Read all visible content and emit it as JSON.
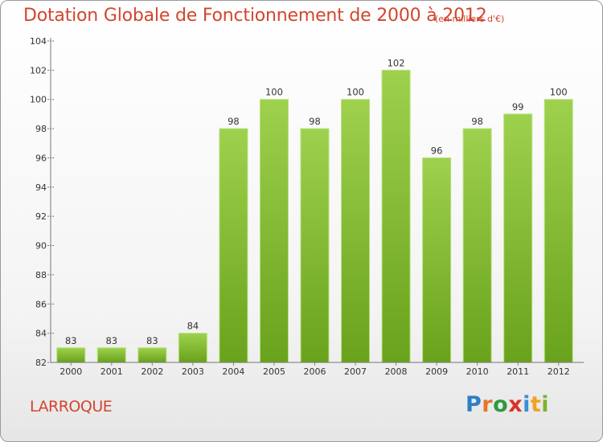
{
  "title": "Dotation Globale de Fonctionnement de 2000 à 2012",
  "unit_note": "(en milliers d'€)",
  "commune": "LARROQUE",
  "brand": {
    "letters": [
      "P",
      "r",
      "o",
      "x",
      "i",
      "t",
      "i"
    ],
    "colors": [
      "#2d7ec4",
      "#e8742a",
      "#2d9a3f",
      "#d8352b",
      "#3b8fd4",
      "#f0a320",
      "#7bb42c"
    ]
  },
  "colors": {
    "title": "#d2462e",
    "bar_light": "#9ed14d",
    "bar_dark": "#69a21c",
    "axis": "#666666"
  },
  "chart_data": {
    "type": "bar",
    "title": "Dotation Globale de Fonctionnement de 2000 à 2012",
    "subtitle": "(en milliers d'€)",
    "categories": [
      "2000",
      "2001",
      "2002",
      "2003",
      "2004",
      "2005",
      "2006",
      "2007",
      "2008",
      "2009",
      "2010",
      "2011",
      "2012"
    ],
    "values": [
      83,
      83,
      83,
      84,
      98,
      100,
      98,
      100,
      102,
      96,
      98,
      99,
      100
    ],
    "ylim": [
      82,
      104
    ],
    "yticks": [
      82,
      84,
      86,
      88,
      90,
      92,
      94,
      96,
      98,
      100,
      102,
      104
    ],
    "grid": false,
    "data_labels": true
  }
}
